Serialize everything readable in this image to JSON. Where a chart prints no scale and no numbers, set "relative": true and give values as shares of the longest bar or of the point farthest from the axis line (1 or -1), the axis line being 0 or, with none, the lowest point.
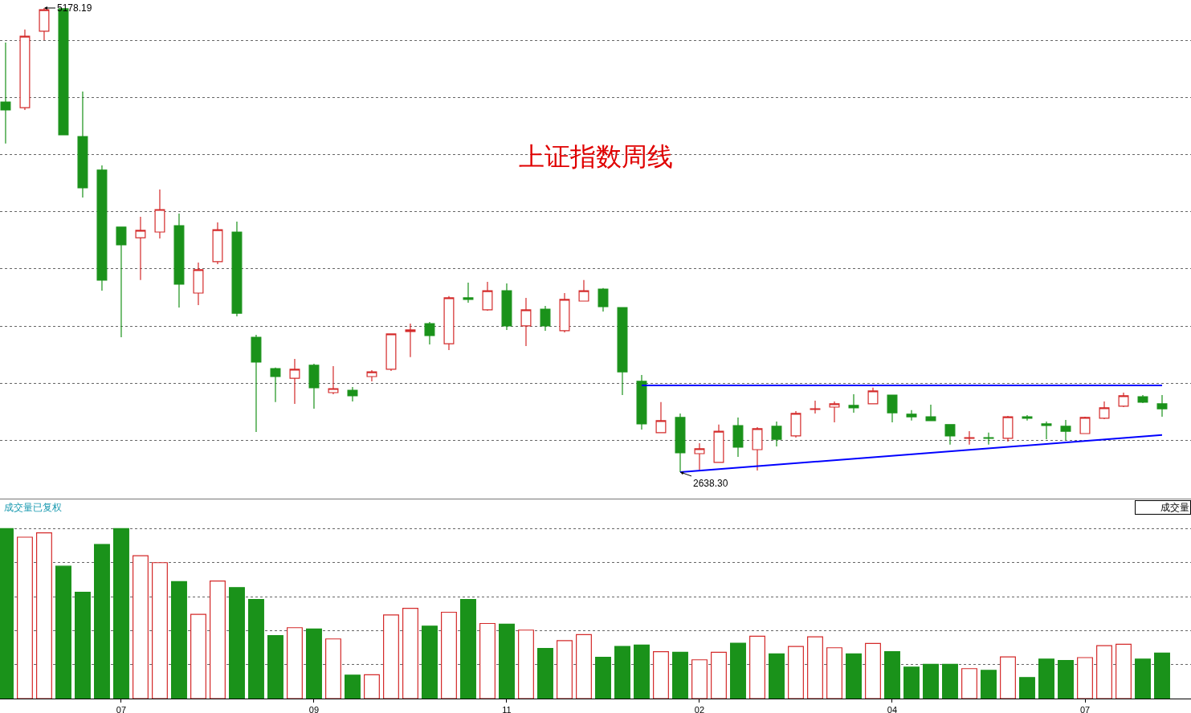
{
  "chart_data": [
    {
      "type": "candlestick",
      "title": "上证指数周线",
      "categories": [
        null,
        null,
        null,
        null,
        null,
        null,
        "07",
        null,
        null,
        null,
        null,
        null,
        null,
        null,
        null,
        null,
        "09",
        null,
        null,
        null,
        null,
        null,
        null,
        null,
        null,
        null,
        "11",
        null,
        null,
        null,
        null,
        null,
        null,
        null,
        null,
        null,
        "02",
        null,
        null,
        null,
        null,
        null,
        null,
        null,
        null,
        null,
        "04",
        null,
        null,
        null,
        null,
        null,
        null,
        null,
        null,
        null,
        "07",
        null,
        null,
        null,
        null
      ],
      "ohlc": [
        [
          4664,
          4989,
          4436,
          4620
        ],
        [
          4633,
          5060,
          4620,
          5024
        ],
        [
          5051,
          5178.19,
          5002,
          5169
        ],
        [
          5174,
          5174,
          4484,
          4484
        ],
        [
          4475,
          4721,
          4141,
          4194
        ],
        [
          4291,
          4317,
          3631,
          3689
        ],
        [
          3979,
          3979,
          3376,
          3882
        ],
        [
          3921,
          4036,
          3689,
          3961
        ],
        [
          3952,
          4185,
          3917,
          4075
        ],
        [
          3987,
          4053,
          3539,
          3667
        ],
        [
          3618,
          3785,
          3552,
          3746
        ],
        [
          3790,
          4005,
          3776,
          3965
        ],
        [
          3952,
          4009,
          3491,
          3508
        ],
        [
          3376,
          3390,
          2858,
          3240
        ],
        [
          3205,
          3210,
          3021,
          3161
        ],
        [
          3152,
          3258,
          3012,
          3201
        ],
        [
          3223,
          3231,
          2985,
          3100
        ],
        [
          3073,
          3218,
          3064,
          3095
        ],
        [
          3086,
          3104,
          3025,
          3056
        ],
        [
          3161,
          3196,
          3135,
          3187
        ],
        [
          3201,
          3394,
          3192,
          3394
        ],
        [
          3407,
          3451,
          3267,
          3416
        ],
        [
          3451,
          3460,
          3337,
          3385
        ],
        [
          3341,
          3601,
          3306,
          3592
        ],
        [
          3592,
          3675,
          3565,
          3583
        ],
        [
          3526,
          3680,
          3521,
          3631
        ],
        [
          3631,
          3671,
          3416,
          3438
        ],
        [
          3438,
          3592,
          3328,
          3526
        ],
        [
          3530,
          3548,
          3412,
          3438
        ],
        [
          3412,
          3618,
          3403,
          3583
        ],
        [
          3574,
          3689,
          3574,
          3631
        ],
        [
          3640,
          3645,
          3517,
          3544
        ],
        [
          3539,
          3539,
          3060,
          3187
        ],
        [
          3135,
          3170,
          2871,
          2902
        ],
        [
          2854,
          3021,
          2854,
          2920
        ],
        [
          2937,
          2959,
          2638.3,
          2744
        ],
        [
          2739,
          2796,
          2651,
          2766
        ],
        [
          2691,
          2898,
          2691,
          2862
        ],
        [
          2893,
          2937,
          2722,
          2775
        ],
        [
          2761,
          2884,
          2647,
          2876
        ],
        [
          2889,
          2915,
          2779,
          2818
        ],
        [
          2836,
          2972,
          2827,
          2959
        ],
        [
          2981,
          3029,
          2959,
          2985
        ],
        [
          2994,
          3025,
          2911,
          3012
        ],
        [
          3003,
          3064,
          2963,
          2990
        ],
        [
          3012,
          3100,
          3012,
          3082
        ],
        [
          3060,
          3060,
          2911,
          2963
        ],
        [
          2955,
          2977,
          2920,
          2941
        ],
        [
          2941,
          3007,
          2920,
          2920
        ],
        [
          2898,
          2898,
          2788,
          2836
        ],
        [
          2823,
          2862,
          2788,
          2827
        ],
        [
          2827,
          2854,
          2788,
          2823
        ],
        [
          2823,
          2946,
          2805,
          2941
        ],
        [
          2941,
          2950,
          2920,
          2933
        ],
        [
          2902,
          2915,
          2818,
          2893
        ],
        [
          2889,
          2924,
          2814,
          2862
        ],
        [
          2849,
          2941,
          2849,
          2937
        ],
        [
          2933,
          3025,
          2928,
          2990
        ],
        [
          2999,
          3073,
          2994,
          3056
        ],
        [
          3051,
          3060,
          3016,
          3021
        ],
        [
          3012,
          3060,
          2941,
          2985
        ]
      ],
      "colors": [
        "#1a921a",
        "#d42a2a",
        "#d42a2a",
        "#1a921a",
        "#1a921a",
        "#1a921a",
        "#1a921a",
        "#d42a2a",
        "#d42a2a",
        "#1a921a",
        "#d42a2a",
        "#d42a2a",
        "#1a921a",
        "#1a921a",
        "#1a921a",
        "#d42a2a",
        "#1a921a",
        "#d42a2a",
        "#1a921a",
        "#d42a2a",
        "#d42a2a",
        "#d42a2a",
        "#1a921a",
        "#d42a2a",
        "#1a921a",
        "#d42a2a",
        "#1a921a",
        "#d42a2a",
        "#1a921a",
        "#d42a2a",
        "#d42a2a",
        "#1a921a",
        "#1a921a",
        "#1a921a",
        "#d42a2a",
        "#1a921a",
        "#d42a2a",
        "#d42a2a",
        "#1a921a",
        "#d42a2a",
        "#1a921a",
        "#d42a2a",
        "#d42a2a",
        "#d42a2a",
        "#1a921a",
        "#d42a2a",
        "#1a921a",
        "#1a921a",
        "#1a921a",
        "#1a921a",
        "#d42a2a",
        "#1a921a",
        "#d42a2a",
        "#1a921a",
        "#1a921a",
        "#1a921a",
        "#d42a2a",
        "#d42a2a",
        "#d42a2a",
        "#1a921a",
        "#1a921a"
      ],
      "series": [
        {
          "type": "line",
          "color": "#0000ff",
          "values": [
            null,
            null,
            null,
            null,
            null,
            null,
            null,
            null,
            null,
            null,
            null,
            null,
            null,
            null,
            null,
            null,
            null,
            null,
            null,
            null,
            null,
            null,
            null,
            null,
            null,
            null,
            null,
            null,
            null,
            null,
            null,
            null,
            null,
            3113,
            null,
            null,
            null,
            null,
            null,
            null,
            null,
            null,
            null,
            null,
            null,
            null,
            null,
            null,
            null,
            null,
            null,
            null,
            null,
            null,
            null,
            null,
            null,
            null,
            null,
            null,
            3113
          ]
        },
        {
          "type": "line",
          "color": "#0000ff",
          "values": [
            null,
            null,
            null,
            null,
            null,
            null,
            null,
            null,
            null,
            null,
            null,
            null,
            null,
            null,
            null,
            null,
            null,
            null,
            null,
            null,
            null,
            null,
            null,
            null,
            null,
            null,
            null,
            null,
            null,
            null,
            null,
            null,
            null,
            null,
            null,
            2638,
            null,
            null,
            null,
            null,
            null,
            null,
            null,
            null,
            null,
            null,
            null,
            null,
            null,
            null,
            null,
            null,
            null,
            null,
            null,
            null,
            null,
            null,
            null,
            null,
            2841
          ]
        }
      ],
      "ylim": [
        2493,
        5222
      ],
      "yticks": [
        {
          "value": 5002,
          "label": null
        },
        {
          "value": 4690,
          "label": null
        },
        {
          "value": 4374,
          "label": null
        },
        {
          "value": 4062,
          "label": null
        },
        {
          "value": 3750,
          "label": null
        },
        {
          "value": 3434,
          "label": null
        },
        {
          "value": 3122,
          "label": null
        },
        {
          "value": 2810,
          "label": null
        }
      ],
      "grid": "y",
      "tick_labels": false,
      "annotations": [
        "5178.19",
        "2638.30"
      ]
    },
    {
      "type": "bar",
      "title": "成交量已复权",
      "categories": [
        null,
        null,
        null,
        null,
        null,
        null,
        "07",
        null,
        null,
        null,
        null,
        null,
        null,
        null,
        null,
        null,
        "09",
        null,
        null,
        null,
        null,
        null,
        null,
        null,
        null,
        null,
        "11",
        null,
        null,
        null,
        null,
        null,
        null,
        null,
        null,
        null,
        "02",
        null,
        null,
        null,
        null,
        null,
        null,
        null,
        null,
        null,
        "04",
        null,
        null,
        null,
        null,
        null,
        null,
        null,
        null,
        null,
        "07",
        null,
        null,
        null,
        null
      ],
      "values": [
        1.0,
        0.95,
        0.975,
        0.779,
        0.626,
        0.907,
        1.0,
        0.841,
        0.8,
        0.688,
        0.496,
        0.692,
        0.653,
        0.583,
        0.37,
        0.417,
        0.409,
        0.351,
        0.138,
        0.14,
        0.492,
        0.531,
        0.426,
        0.508,
        0.583,
        0.442,
        0.438,
        0.403,
        0.295,
        0.341,
        0.376,
        0.243,
        0.307,
        0.315,
        0.276,
        0.272,
        0.228,
        0.272,
        0.326,
        0.367,
        0.263,
        0.307,
        0.363,
        0.299,
        0.263,
        0.324,
        0.276,
        0.185,
        0.201,
        0.201,
        0.176,
        0.166,
        0.245,
        0.124,
        0.232,
        0.224,
        0.241,
        0.311,
        0.32,
        0.232,
        0.268
      ],
      "colors": [
        "#1a921a",
        "#d42a2a",
        "#d42a2a",
        "#1a921a",
        "#1a921a",
        "#1a921a",
        "#1a921a",
        "#d42a2a",
        "#d42a2a",
        "#1a921a",
        "#d42a2a",
        "#d42a2a",
        "#1a921a",
        "#1a921a",
        "#1a921a",
        "#d42a2a",
        "#1a921a",
        "#d42a2a",
        "#1a921a",
        "#d42a2a",
        "#d42a2a",
        "#d42a2a",
        "#1a921a",
        "#d42a2a",
        "#1a921a",
        "#d42a2a",
        "#1a921a",
        "#d42a2a",
        "#1a921a",
        "#d42a2a",
        "#d42a2a",
        "#1a921a",
        "#1a921a",
        "#1a921a",
        "#d42a2a",
        "#1a921a",
        "#d42a2a",
        "#d42a2a",
        "#1a921a",
        "#d42a2a",
        "#1a921a",
        "#d42a2a",
        "#d42a2a",
        "#d42a2a",
        "#1a921a",
        "#d42a2a",
        "#1a921a",
        "#1a921a",
        "#1a921a",
        "#1a921a",
        "#d42a2a",
        "#1a921a",
        "#d42a2a",
        "#1a921a",
        "#1a921a",
        "#1a921a",
        "#d42a2a",
        "#d42a2a",
        "#d42a2a",
        "#1a921a",
        "#1a921a"
      ],
      "relative": true,
      "grid": "y",
      "tick_labels": "x",
      "annotations": [
        "成交量"
      ]
    }
  ]
}
